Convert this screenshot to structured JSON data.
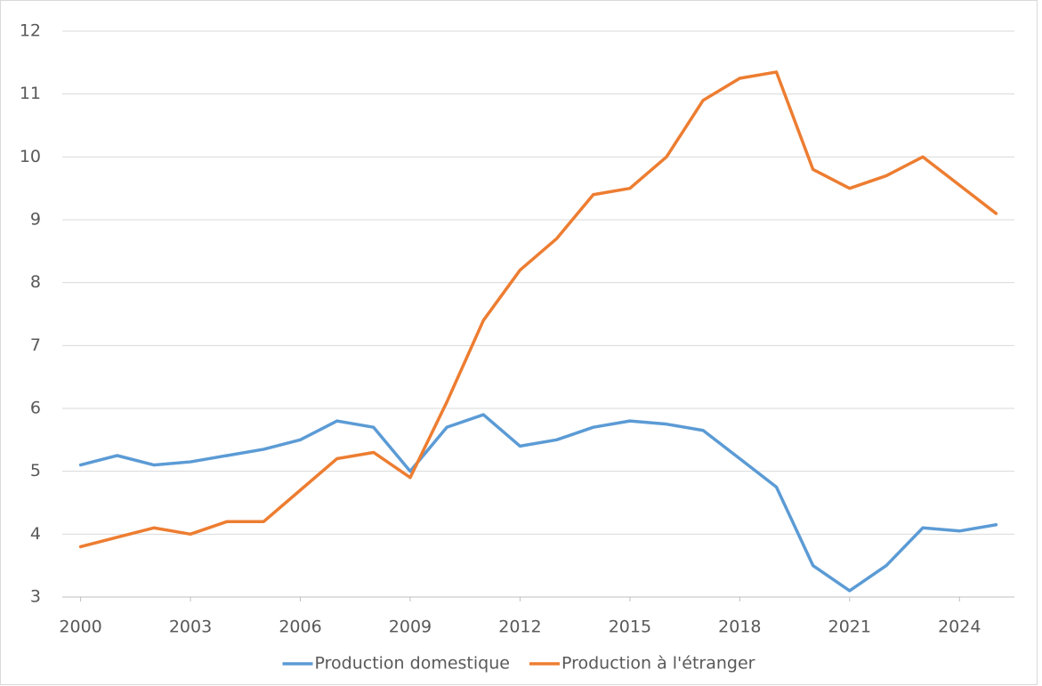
{
  "chart_data": {
    "type": "line",
    "x": [
      2000,
      2001,
      2002,
      2003,
      2004,
      2005,
      2006,
      2007,
      2008,
      2009,
      2010,
      2011,
      2012,
      2013,
      2014,
      2015,
      2016,
      2017,
      2018,
      2019,
      2020,
      2021,
      2022,
      2023,
      2024,
      2025
    ],
    "series": [
      {
        "name": "Production domestique",
        "color": "#5b9bd5",
        "values": [
          5.1,
          5.25,
          5.1,
          5.15,
          5.25,
          5.35,
          5.5,
          5.8,
          5.7,
          5.0,
          5.7,
          5.9,
          5.4,
          5.5,
          5.7,
          5.8,
          5.75,
          5.65,
          5.2,
          4.75,
          3.5,
          3.1,
          3.5,
          4.1,
          4.05,
          4.15
        ]
      },
      {
        "name": "Production à l'étranger",
        "color": "#ed7d31",
        "values": [
          3.8,
          3.95,
          4.1,
          4.0,
          4.2,
          4.2,
          4.7,
          5.2,
          5.3,
          4.9,
          6.1,
          7.4,
          8.2,
          8.7,
          9.4,
          9.5,
          10.0,
          10.9,
          11.25,
          11.35,
          9.8,
          9.5,
          9.7,
          10.0,
          9.55,
          9.1
        ]
      }
    ],
    "xlim": [
      1999.5,
      2025.5
    ],
    "xticks": [
      2000,
      2003,
      2006,
      2009,
      2012,
      2015,
      2018,
      2021,
      2024
    ],
    "ylim": [
      3,
      12
    ],
    "yticks": [
      3,
      4,
      5,
      6,
      7,
      8,
      9,
      10,
      11,
      12
    ],
    "grid": true,
    "legend": "bottom"
  }
}
